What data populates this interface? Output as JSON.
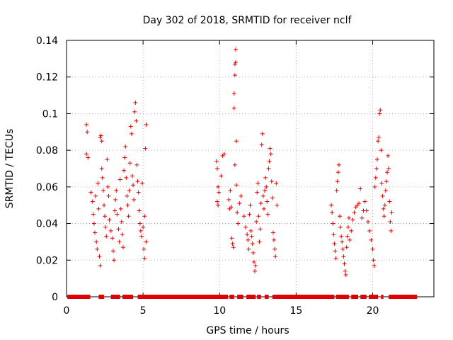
{
  "chart_data": {
    "type": "scatter",
    "title": "Day 302 of 2018, SRMTID for receiver nclf",
    "xlabel": "GPS time / hours",
    "ylabel": "SRMTID / TECUs",
    "xlim": [
      0,
      24
    ],
    "ylim": [
      0,
      0.14
    ],
    "x_ticks": [
      0,
      5,
      10,
      15,
      20
    ],
    "x_tick_labels": [
      "0",
      "5",
      "10",
      "15",
      "20"
    ],
    "y_ticks": [
      0,
      0.02,
      0.04,
      0.06,
      0.08,
      0.1,
      0.12,
      0.14
    ],
    "y_tick_labels": [
      "0",
      "0.02",
      "0.04",
      "0.06",
      "0.08",
      "0.1",
      "0.12",
      "0.14"
    ],
    "grid": true,
    "marker": "plus",
    "color": "#e00000",
    "series": [
      {
        "name": "SRMTID",
        "points": [
          [
            1.3,
            0.094
          ],
          [
            1.35,
            0.09
          ],
          [
            1.3,
            0.078
          ],
          [
            1.4,
            0.076
          ],
          [
            1.6,
            0.057
          ],
          [
            1.7,
            0.052
          ],
          [
            1.75,
            0.045
          ],
          [
            1.8,
            0.04
          ],
          [
            1.85,
            0.035
          ],
          [
            1.9,
            0.055
          ],
          [
            1.95,
            0.03
          ],
          [
            2.0,
            0.026
          ],
          [
            2.05,
            0.062
          ],
          [
            2.1,
            0.048
          ],
          [
            2.15,
            0.022
          ],
          [
            2.2,
            0.017
          ],
          [
            2.2,
            0.087
          ],
          [
            2.25,
            0.088
          ],
          [
            2.3,
            0.085
          ],
          [
            2.3,
            0.07
          ],
          [
            2.35,
            0.065
          ],
          [
            2.4,
            0.058
          ],
          [
            2.45,
            0.05
          ],
          [
            2.5,
            0.044
          ],
          [
            2.55,
            0.038
          ],
          [
            2.6,
            0.033
          ],
          [
            2.65,
            0.075
          ],
          [
            2.7,
            0.06
          ],
          [
            2.75,
            0.055
          ],
          [
            2.8,
            0.042
          ],
          [
            2.9,
            0.036
          ],
          [
            3.0,
            0.032
          ],
          [
            3.05,
            0.025
          ],
          [
            3.1,
            0.02
          ],
          [
            3.15,
            0.047
          ],
          [
            3.2,
            0.053
          ],
          [
            3.25,
            0.058
          ],
          [
            3.3,
            0.045
          ],
          [
            3.4,
            0.037
          ],
          [
            3.45,
            0.03
          ],
          [
            3.5,
            0.064
          ],
          [
            3.55,
            0.048
          ],
          [
            3.6,
            0.041
          ],
          [
            3.65,
            0.034
          ],
          [
            3.7,
            0.027
          ],
          [
            3.75,
            0.069
          ],
          [
            3.8,
            0.076
          ],
          [
            3.85,
            0.082
          ],
          [
            3.9,
            0.065
          ],
          [
            3.95,
            0.055
          ],
          [
            4.0,
            0.05
          ],
          [
            4.05,
            0.044
          ],
          [
            4.1,
            0.058
          ],
          [
            4.15,
            0.073
          ],
          [
            4.2,
            0.093
          ],
          [
            4.25,
            0.089
          ],
          [
            4.3,
            0.066
          ],
          [
            4.35,
            0.061
          ],
          [
            4.4,
            0.053
          ],
          [
            4.45,
            0.101
          ],
          [
            4.5,
            0.106
          ],
          [
            4.55,
            0.096
          ],
          [
            4.6,
            0.072
          ],
          [
            4.65,
            0.063
          ],
          [
            4.7,
            0.057
          ],
          [
            4.75,
            0.047
          ],
          [
            4.8,
            0.04
          ],
          [
            4.85,
            0.036
          ],
          [
            4.9,
            0.033
          ],
          [
            4.95,
            0.062
          ],
          [
            5.0,
            0.038
          ],
          [
            5.05,
            0.026
          ],
          [
            5.1,
            0.044
          ],
          [
            5.15,
            0.081
          ],
          [
            5.2,
            0.094
          ],
          [
            5.1,
            0.021
          ],
          [
            5.2,
            0.03
          ],
          [
            9.8,
            0.074
          ],
          [
            9.85,
            0.07
          ],
          [
            9.9,
            0.06
          ],
          [
            9.95,
            0.057
          ],
          [
            9.85,
            0.052
          ],
          [
            9.9,
            0.05
          ],
          [
            10.1,
            0.066
          ],
          [
            10.2,
            0.077
          ],
          [
            10.3,
            0.078
          ],
          [
            10.6,
            0.053
          ],
          [
            10.65,
            0.048
          ],
          [
            10.7,
            0.058
          ],
          [
            10.75,
            0.049
          ],
          [
            10.8,
            0.032
          ],
          [
            10.85,
            0.029
          ],
          [
            10.9,
            0.027
          ],
          [
            10.95,
            0.103
          ],
          [
            10.95,
            0.111
          ],
          [
            11.0,
            0.121
          ],
          [
            11.0,
            0.127
          ],
          [
            11.05,
            0.128
          ],
          [
            11.05,
            0.135
          ],
          [
            11.1,
            0.085
          ],
          [
            11.0,
            0.072
          ],
          [
            11.1,
            0.061
          ],
          [
            11.15,
            0.046
          ],
          [
            11.2,
            0.04
          ],
          [
            11.3,
            0.051
          ],
          [
            11.4,
            0.055
          ],
          [
            11.6,
            0.044
          ],
          [
            11.7,
            0.038
          ],
          [
            11.8,
            0.034
          ],
          [
            11.85,
            0.031
          ],
          [
            11.9,
            0.026
          ],
          [
            11.95,
            0.045
          ],
          [
            12.0,
            0.05
          ],
          [
            12.05,
            0.036
          ],
          [
            12.1,
            0.033
          ],
          [
            12.15,
            0.029
          ],
          [
            12.2,
            0.024
          ],
          [
            12.25,
            0.019
          ],
          [
            12.3,
            0.014
          ],
          [
            12.35,
            0.017
          ],
          [
            12.4,
            0.041
          ],
          [
            12.45,
            0.057
          ],
          [
            12.5,
            0.062
          ],
          [
            12.55,
            0.044
          ],
          [
            12.6,
            0.03
          ],
          [
            12.65,
            0.037
          ],
          [
            12.7,
            0.051
          ],
          [
            12.75,
            0.083
          ],
          [
            12.8,
            0.089
          ],
          [
            12.85,
            0.055
          ],
          [
            12.9,
            0.048
          ],
          [
            12.95,
            0.058
          ],
          [
            13.0,
            0.065
          ],
          [
            13.05,
            0.06
          ],
          [
            13.1,
            0.052
          ],
          [
            13.15,
            0.045
          ],
          [
            13.2,
            0.07
          ],
          [
            13.25,
            0.074
          ],
          [
            13.3,
            0.081
          ],
          [
            13.35,
            0.078
          ],
          [
            13.4,
            0.063
          ],
          [
            13.45,
            0.054
          ],
          [
            13.5,
            0.035
          ],
          [
            13.55,
            0.031
          ],
          [
            13.6,
            0.026
          ],
          [
            13.65,
            0.022
          ],
          [
            13.7,
            0.062
          ],
          [
            13.75,
            0.05
          ],
          [
            17.3,
            0.05
          ],
          [
            17.35,
            0.046
          ],
          [
            17.4,
            0.04
          ],
          [
            17.45,
            0.034
          ],
          [
            17.5,
            0.029
          ],
          [
            17.55,
            0.025
          ],
          [
            17.6,
            0.021
          ],
          [
            17.65,
            0.058
          ],
          [
            17.7,
            0.063
          ],
          [
            17.75,
            0.068
          ],
          [
            17.8,
            0.072
          ],
          [
            17.85,
            0.044
          ],
          [
            17.9,
            0.038
          ],
          [
            17.95,
            0.033
          ],
          [
            18.0,
            0.03
          ],
          [
            18.05,
            0.026
          ],
          [
            18.1,
            0.022
          ],
          [
            18.15,
            0.018
          ],
          [
            18.2,
            0.014
          ],
          [
            18.25,
            0.012
          ],
          [
            18.3,
            0.027
          ],
          [
            18.35,
            0.033
          ],
          [
            18.4,
            0.038
          ],
          [
            18.45,
            0.043
          ],
          [
            18.5,
            0.031
          ],
          [
            18.6,
            0.036
          ],
          [
            18.7,
            0.042
          ],
          [
            18.8,
            0.046
          ],
          [
            18.9,
            0.049
          ],
          [
            19.0,
            0.05
          ],
          [
            19.1,
            0.051
          ],
          [
            19.2,
            0.059
          ],
          [
            19.3,
            0.043
          ],
          [
            19.4,
            0.047
          ],
          [
            19.5,
            0.052
          ],
          [
            19.6,
            0.047
          ],
          [
            19.7,
            0.041
          ],
          [
            19.8,
            0.036
          ],
          [
            19.9,
            0.031
          ],
          [
            20.0,
            0.026
          ],
          [
            20.05,
            0.02
          ],
          [
            20.1,
            0.017
          ],
          [
            20.15,
            0.06
          ],
          [
            20.2,
            0.065
          ],
          [
            20.25,
            0.07
          ],
          [
            20.3,
            0.075
          ],
          [
            20.35,
            0.085
          ],
          [
            20.4,
            0.087
          ],
          [
            20.45,
            0.1
          ],
          [
            20.5,
            0.102
          ],
          [
            20.55,
            0.08
          ],
          [
            20.6,
            0.062
          ],
          [
            20.65,
            0.055
          ],
          [
            20.7,
            0.048
          ],
          [
            20.75,
            0.044
          ],
          [
            20.8,
            0.05
          ],
          [
            20.85,
            0.058
          ],
          [
            20.9,
            0.063
          ],
          [
            20.95,
            0.068
          ],
          [
            21.0,
            0.077
          ],
          [
            21.05,
            0.07
          ],
          [
            21.1,
            0.052
          ],
          [
            21.15,
            0.041
          ],
          [
            21.2,
            0.036
          ],
          [
            21.25,
            0.046
          ]
        ]
      }
    ],
    "zero_band": {
      "y": 0,
      "segments": [
        [
          0.05,
          1.55
        ],
        [
          2.1,
          2.45
        ],
        [
          2.9,
          3.5
        ],
        [
          3.65,
          4.35
        ],
        [
          4.65,
          10.55
        ],
        [
          10.65,
          10.95
        ],
        [
          11.15,
          11.55
        ],
        [
          11.75,
          12.35
        ],
        [
          12.45,
          12.7
        ],
        [
          12.95,
          13.2
        ],
        [
          13.45,
          17.5
        ],
        [
          17.6,
          18.45
        ],
        [
          18.6,
          19.05
        ],
        [
          19.2,
          19.6
        ],
        [
          19.75,
          20.35
        ],
        [
          20.55,
          20.7
        ],
        [
          21.05,
          22.9
        ]
      ]
    }
  }
}
